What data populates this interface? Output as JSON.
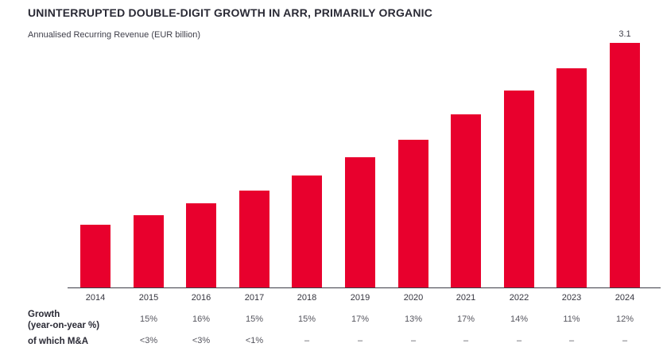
{
  "title": "UNINTERRUPTED DOUBLE-DIGIT GROWTH IN ARR, PRIMARILY ORGANIC",
  "subtitle": "Annualised Recurring Revenue (EUR billion)",
  "colors": {
    "bar": "#E8002D",
    "title_text": "#2A2A35",
    "body_text": "#55555E",
    "axis": "#3C3C46"
  },
  "table": {
    "growth_label_line1": "Growth",
    "growth_label_line2": "(year-on-year %)",
    "mna_label": "of which M&A"
  },
  "chart_data": {
    "type": "bar",
    "title": "UNINTERRUPTED DOUBLE-DIGIT GROWTH IN ARR, PRIMARILY ORGANIC",
    "subtitle": "Annualised Recurring Revenue (EUR billion)",
    "xlabel": "",
    "ylabel": "Annualised Recurring Revenue (EUR billion)",
    "categories": [
      "2014",
      "2015",
      "2016",
      "2017",
      "2018",
      "2019",
      "2020",
      "2021",
      "2022",
      "2023",
      "2024"
    ],
    "values": [
      0.8,
      0.92,
      1.07,
      1.23,
      1.42,
      1.65,
      1.87,
      2.19,
      2.5,
      2.78,
      3.1
    ],
    "value_labels": [
      "",
      "",
      "",
      "",
      "",
      "",
      "",
      "",
      "",
      "",
      "3.1"
    ],
    "growth_yoy_pct": [
      "",
      "15%",
      "16%",
      "15%",
      "15%",
      "17%",
      "13%",
      "17%",
      "14%",
      "11%",
      "12%"
    ],
    "of_which_mna": [
      "",
      "<3%",
      "<3%",
      "<1%",
      "–",
      "–",
      "–",
      "–",
      "–",
      "–",
      "–"
    ],
    "ylim": [
      0,
      3.2
    ],
    "grid": false,
    "legend": false,
    "bar_color": "#E8002D"
  }
}
